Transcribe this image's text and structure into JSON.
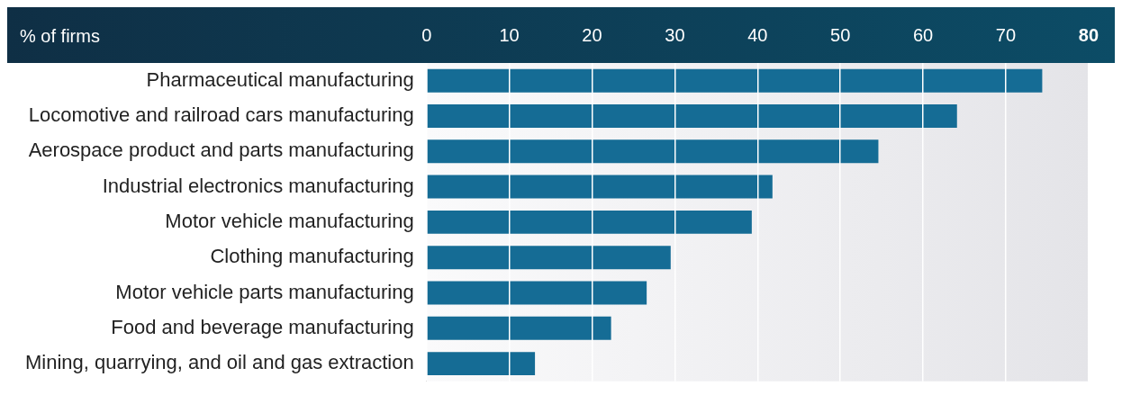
{
  "chart_data": {
    "type": "bar",
    "orientation": "horizontal",
    "xlabel": "% of firms",
    "categories": [
      "Pharmaceutical manufacturing",
      "Locomotive and railroad cars manufacturing",
      "Aerospace product and parts manufacturing",
      "Industrial electronics manufacturing",
      "Motor vehicle manufacturing",
      "Clothing manufacturing",
      "Motor vehicle parts manufacturing",
      "Food and beverage manufacturing",
      "Mining, quarrying, and oil and gas extraction"
    ],
    "values": [
      74.4,
      64.1,
      54.6,
      41.8,
      39.3,
      29.5,
      26.6,
      22.3,
      13.1
    ],
    "color": "#156c95",
    "xlim": [
      0,
      80
    ],
    "xticks": [
      0,
      10,
      20,
      30,
      40,
      50,
      60,
      70,
      80
    ],
    "grid": "x",
    "legend": false
  }
}
